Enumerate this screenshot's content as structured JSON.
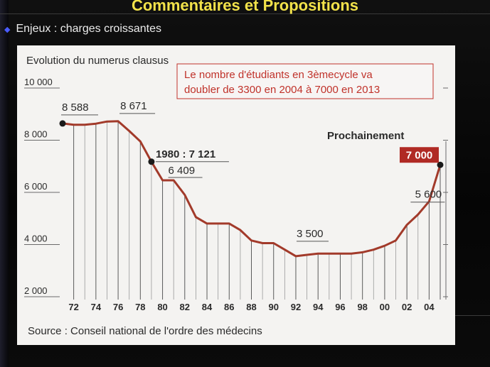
{
  "slide": {
    "title": "Commentaires et Propositions",
    "bullet_text": "Enjeux : charges croissantes",
    "bullet_icon": "diamond-bullet-icon"
  },
  "chart_data": {
    "type": "line",
    "title": "Evolution du numerus clausus",
    "xlabel": "",
    "ylabel": "",
    "x_tick_labels": [
      "72",
      "74",
      "76",
      "78",
      "80",
      "82",
      "84",
      "86",
      "88",
      "90",
      "92",
      "94",
      "96",
      "98",
      "00",
      "02",
      "04"
    ],
    "y_tick_labels": [
      "2 000",
      "4 000",
      "6 000",
      "8 000",
      "10 000"
    ],
    "ylim": [
      2000,
      10000
    ],
    "grid": "vertical",
    "series": [
      {
        "color": "#a23a2a",
        "x": [
          1971,
          1972,
          1973,
          1974,
          1975,
          1976,
          1977,
          1978,
          1979,
          1980,
          1981,
          1982,
          1983,
          1984,
          1985,
          1986,
          1987,
          1988,
          1989,
          1990,
          1991,
          1992,
          1993,
          1994,
          1995,
          1996,
          1997,
          1998,
          1999,
          2000,
          2001,
          2002,
          2003,
          2004,
          2005
        ],
        "y": [
          8588,
          8540,
          8540,
          8580,
          8660,
          8671,
          8300,
          7900,
          7121,
          6409,
          6409,
          5850,
          5000,
          4750,
          4750,
          4750,
          4500,
          4100,
          4000,
          4000,
          3750,
          3500,
          3550,
          3600,
          3600,
          3600,
          3600,
          3650,
          3750,
          3900,
          4100,
          4700,
          5100,
          5600,
          7000
        ]
      }
    ],
    "annotations": [
      {
        "text": "8 588",
        "x": 1971,
        "y": 8588
      },
      {
        "text": "8 671",
        "x": 1976,
        "y": 8671
      },
      {
        "text": "1980 : 7 121",
        "x": 1979,
        "y": 7121
      },
      {
        "text": "6 409",
        "x": 1980,
        "y": 6409
      },
      {
        "text": "3 500",
        "x": 1992,
        "y": 3500
      },
      {
        "text": "5 600",
        "x": 2004,
        "y": 5600
      },
      {
        "text": "Prochainement"
      },
      {
        "text": "7 000",
        "x": 2005,
        "y": 7000,
        "highlight_color": "#b02a24"
      }
    ],
    "callout": {
      "lines": [
        "Le nombre d'étudiants en 3èmecycle va",
        "doubler de 3300 en 2004 à 7000 en 2013"
      ],
      "text_color": "#c0322a",
      "border_color": "#c0322a"
    },
    "source": "Source : Conseil national de l'ordre des médecins"
  }
}
